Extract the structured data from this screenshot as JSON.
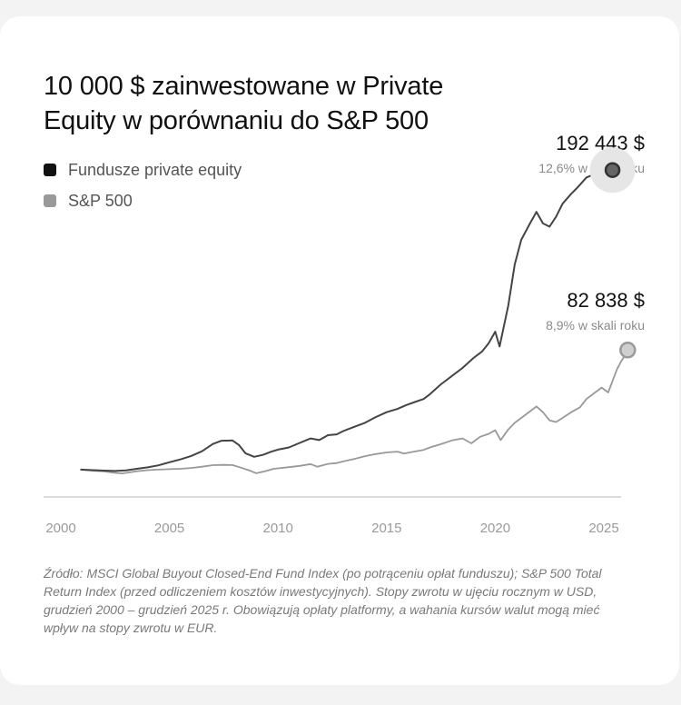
{
  "title": "10 000 $ zainwestowane w Private Equity w porównaniu do S&P 500",
  "colors": {
    "pe": "#444444",
    "sp": "#999999",
    "axis": "#cfcfcf",
    "tick_text": "#9a9a9a"
  },
  "callouts": {
    "pe": {
      "value": "192 443 $",
      "rate": "12,6% w skali roku"
    },
    "sp": {
      "value": "82 838 $",
      "rate": "8,9% w skali roku"
    }
  },
  "footnote": "Źródło: MSCI Global Buyout Closed-End Fund Index (po potrąceniu opłat funduszu); S&P 500 Total Return Index (przed odliczeniem kosztów inwestycyjnych). Stopy zwrotu w ujęciu rocznym w USD, grudzień 2000 – grudzień 2025 r. Obowiązują opłaty platformy, a wahania kursów walut mogą mieć wpływ na stopy zwrotu w EUR.",
  "chart_data": {
    "type": "line",
    "title": "10 000 $ zainwestowane w Private Equity w porównaniu do S&P 500",
    "xlabel": "",
    "ylabel": "",
    "x_ticks": [
      "2000",
      "2005",
      "2010",
      "2015",
      "2020",
      "2025"
    ],
    "xlim": [
      2000,
      2026
    ],
    "ylim": [
      0,
      210000
    ],
    "grid": false,
    "legend_position": "top-left",
    "series": [
      {
        "name": "Fundusze private equity",
        "points": [
          [
            2000.9,
            10000
          ],
          [
            2001.5,
            9700
          ],
          [
            2002.0,
            9400
          ],
          [
            2002.5,
            9200
          ],
          [
            2003.0,
            9600
          ],
          [
            2003.5,
            10500
          ],
          [
            2004.0,
            11400
          ],
          [
            2004.5,
            12600
          ],
          [
            2005.0,
            14500
          ],
          [
            2005.5,
            16200
          ],
          [
            2006.0,
            18300
          ],
          [
            2006.5,
            21200
          ],
          [
            2007.0,
            25600
          ],
          [
            2007.4,
            27600
          ],
          [
            2007.9,
            27800
          ],
          [
            2008.2,
            25000
          ],
          [
            2008.5,
            20000
          ],
          [
            2008.9,
            17800
          ],
          [
            2009.3,
            19000
          ],
          [
            2009.7,
            21000
          ],
          [
            2010.0,
            22200
          ],
          [
            2010.5,
            23500
          ],
          [
            2011.0,
            26300
          ],
          [
            2011.5,
            29000
          ],
          [
            2011.9,
            28000
          ],
          [
            2012.3,
            31000
          ],
          [
            2012.7,
            31500
          ],
          [
            2013.0,
            33500
          ],
          [
            2013.5,
            36000
          ],
          [
            2014.0,
            38500
          ],
          [
            2014.5,
            42000
          ],
          [
            2015.0,
            45000
          ],
          [
            2015.5,
            47000
          ],
          [
            2015.9,
            49300
          ],
          [
            2016.3,
            51200
          ],
          [
            2016.7,
            53000
          ],
          [
            2017.0,
            56000
          ],
          [
            2017.5,
            62000
          ],
          [
            2018.0,
            67000
          ],
          [
            2018.5,
            72000
          ],
          [
            2019.0,
            78000
          ],
          [
            2019.4,
            82000
          ],
          [
            2019.7,
            87000
          ],
          [
            2020.0,
            94000
          ],
          [
            2020.2,
            85000
          ],
          [
            2020.6,
            110000
          ],
          [
            2020.9,
            135000
          ],
          [
            2021.2,
            150000
          ],
          [
            2021.6,
            160000
          ],
          [
            2021.9,
            167000
          ],
          [
            2022.2,
            160000
          ],
          [
            2022.5,
            158000
          ],
          [
            2022.8,
            164000
          ],
          [
            2023.1,
            172000
          ],
          [
            2023.5,
            178000
          ],
          [
            2023.8,
            182000
          ],
          [
            2024.2,
            188000
          ],
          [
            2024.6,
            190000
          ],
          [
            2025.0,
            191000
          ],
          [
            2025.4,
            192443
          ]
        ]
      },
      {
        "name": "S&P 500",
        "points": [
          [
            2000.9,
            10000
          ],
          [
            2001.5,
            9300
          ],
          [
            2002.0,
            8900
          ],
          [
            2002.4,
            8200
          ],
          [
            2002.8,
            7700
          ],
          [
            2003.0,
            8000
          ],
          [
            2003.5,
            9000
          ],
          [
            2004.0,
            9700
          ],
          [
            2004.5,
            10000
          ],
          [
            2005.0,
            10300
          ],
          [
            2005.5,
            10500
          ],
          [
            2006.0,
            11000
          ],
          [
            2006.5,
            11800
          ],
          [
            2007.0,
            12700
          ],
          [
            2007.5,
            12900
          ],
          [
            2007.9,
            12800
          ],
          [
            2008.3,
            11200
          ],
          [
            2008.7,
            9400
          ],
          [
            2009.0,
            7800
          ],
          [
            2009.4,
            9000
          ],
          [
            2009.8,
            10500
          ],
          [
            2010.0,
            10800
          ],
          [
            2010.5,
            11500
          ],
          [
            2011.0,
            12300
          ],
          [
            2011.5,
            13400
          ],
          [
            2011.8,
            11800
          ],
          [
            2012.3,
            13500
          ],
          [
            2012.7,
            14000
          ],
          [
            2013.0,
            15000
          ],
          [
            2013.5,
            16500
          ],
          [
            2014.0,
            18200
          ],
          [
            2014.5,
            19500
          ],
          [
            2015.0,
            20500
          ],
          [
            2015.5,
            21000
          ],
          [
            2015.8,
            19800
          ],
          [
            2016.2,
            20800
          ],
          [
            2016.7,
            22000
          ],
          [
            2017.0,
            23500
          ],
          [
            2017.5,
            25500
          ],
          [
            2018.0,
            27800
          ],
          [
            2018.5,
            29000
          ],
          [
            2018.9,
            26000
          ],
          [
            2019.3,
            30000
          ],
          [
            2019.7,
            31800
          ],
          [
            2020.0,
            34000
          ],
          [
            2020.25,
            28000
          ],
          [
            2020.6,
            34500
          ],
          [
            2020.9,
            38500
          ],
          [
            2021.2,
            41500
          ],
          [
            2021.5,
            44500
          ],
          [
            2021.9,
            48500
          ],
          [
            2022.2,
            45000
          ],
          [
            2022.5,
            40000
          ],
          [
            2022.8,
            39000
          ],
          [
            2023.1,
            41500
          ],
          [
            2023.5,
            45000
          ],
          [
            2023.9,
            48000
          ],
          [
            2024.2,
            53000
          ],
          [
            2024.6,
            57000
          ],
          [
            2024.9,
            60000
          ],
          [
            2025.2,
            57000
          ],
          [
            2025.4,
            64000
          ],
          [
            2025.6,
            71000
          ],
          [
            2025.8,
            76000
          ],
          [
            2026.0,
            80000
          ],
          [
            2026.1,
            82838
          ]
        ]
      }
    ]
  }
}
